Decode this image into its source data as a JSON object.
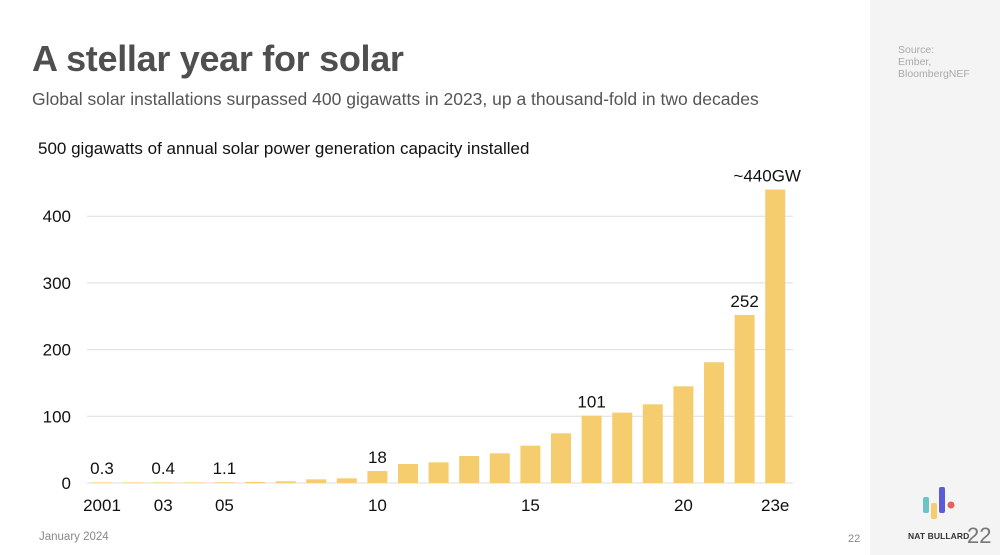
{
  "slide": {
    "title": "A stellar year for solar",
    "subtitle": "Global solar installations surpassed 400 gigawatts in 2023, up a thousand-fold in two decades",
    "source_lines": [
      "Source:",
      "Ember,",
      "BloombergNEF"
    ],
    "date": "January 2024",
    "page_number": "22",
    "brand_name": "NAT BULLARD",
    "brand_page_number": "22",
    "colors": {
      "bar": "#F5CD6E",
      "gridline": "#dddddd",
      "title": "#4f4f4f",
      "logo_teal": "#6CC3C8",
      "logo_yellow": "#F5CD6E",
      "logo_purple": "#5B5BD6",
      "logo_red": "#E8605A"
    }
  },
  "chart_data": {
    "type": "bar",
    "title": "500 gigawatts of annual solar power generation capacity installed",
    "xlabel": "",
    "ylabel": "",
    "ylim": [
      0,
      500
    ],
    "yticks": [
      0,
      100,
      200,
      300,
      400
    ],
    "grid": true,
    "categories": [
      "2001",
      "2002",
      "2003",
      "2004",
      "2005",
      "2006",
      "2007",
      "2008",
      "2009",
      "2010",
      "2011",
      "2012",
      "2013",
      "2014",
      "2015",
      "2016",
      "2017",
      "2018",
      "2019",
      "2020",
      "2021",
      "2022",
      "2023e"
    ],
    "x_tick_labels": [
      {
        "category": "2001",
        "label": "2001"
      },
      {
        "category": "2003",
        "label": "03"
      },
      {
        "category": "2005",
        "label": "05"
      },
      {
        "category": "2010",
        "label": "10"
      },
      {
        "category": "2015",
        "label": "15"
      },
      {
        "category": "2020",
        "label": "20"
      },
      {
        "category": "2023e",
        "label": "23e"
      }
    ],
    "values": [
      0.3,
      0.35,
      0.4,
      0.8,
      1.1,
      1.5,
      2.5,
      5.5,
      7,
      18,
      28.5,
      31,
      40.5,
      44.5,
      56,
      74.5,
      101,
      105.5,
      118,
      145,
      181,
      252,
      440
    ],
    "data_labels": [
      {
        "category": "2001",
        "label": "0.3"
      },
      {
        "category": "2003",
        "label": "0.4"
      },
      {
        "category": "2005",
        "label": "1.1"
      },
      {
        "category": "2010",
        "label": "18"
      },
      {
        "category": "2017",
        "label": "101"
      },
      {
        "category": "2022",
        "label": "252"
      },
      {
        "category": "2023e",
        "label": "~440GW"
      }
    ]
  }
}
